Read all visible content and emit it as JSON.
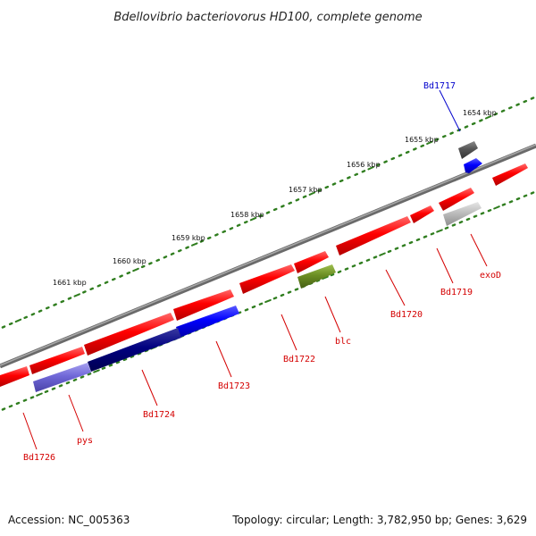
{
  "title": "Bdellovibrio bacteriovorus HD100, complete genome",
  "footer": {
    "accession": "Accession: NC_005363",
    "summary": "Topology: circular; Length: 3,782,950 bp; Genes: 3,629"
  },
  "kbp_ticks": [
    "1654 kbp",
    "1655 kbp",
    "1656 kbp",
    "1657 kbp",
    "1658 kbp",
    "1659 kbp",
    "1660 kbp",
    "1661 kbp"
  ],
  "gene_labels": [
    "Bd1717",
    "exoD",
    "Bd1719",
    "Bd1720",
    "blc",
    "Bd1722",
    "Bd1723",
    "Bd1724",
    "pys",
    "Bd1726"
  ],
  "colors": {
    "backbone": "#7a7a7a",
    "ticks": "#2f7d1e",
    "forward_gene": "#ff0000",
    "label_red": "#d40000",
    "label_blue": "#0000cc",
    "blue": "#0000ff",
    "navy": "#000080",
    "lavender": "#7068d8",
    "olive": "#6b8e23",
    "dark_gray": "#555555",
    "light_gray": "#bdbdbd"
  }
}
